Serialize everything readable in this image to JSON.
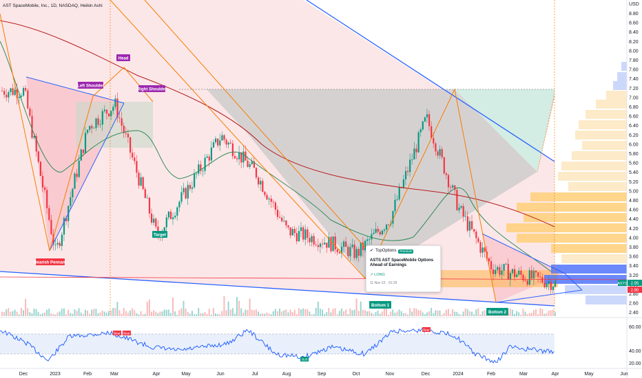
{
  "symbol_title": "AST SpaceMobile, Inc., 1D, NASDAQ, Heikin Ashi",
  "currency": "USD",
  "price_ticks": [
    "8.80",
    "8.60",
    "8.40",
    "8.20",
    "8.00",
    "7.80",
    "7.60",
    "7.40",
    "7.20",
    "7.00",
    "6.80",
    "6.60",
    "6.40",
    "6.20",
    "6.00",
    "5.80",
    "5.60",
    "5.40",
    "5.20",
    "5.00",
    "4.80",
    "4.60",
    "4.40",
    "4.20",
    "4.00",
    "3.80",
    "3.60",
    "3.40",
    "3.20",
    "3.00",
    "2.80",
    "2.60",
    "2.40"
  ],
  "months": [
    "Dec",
    "2023",
    "Feb",
    "Mar",
    "Apr",
    "May",
    "Jun",
    "Jul",
    "Aug",
    "Sep",
    "Oct",
    "Nov",
    "Dec",
    "2024",
    "Feb",
    "Mar",
    "Apr",
    "May",
    "Jun"
  ],
  "rsi_ticks": [
    "60.00",
    "40.00",
    "20.00"
  ],
  "price_tags": {
    "ticker": "ASTS",
    "last": "2.95",
    "prev": "2.90",
    "ticker_color": "#089981",
    "prev_color": "#f23645"
  },
  "annotations": {
    "head": "Head",
    "left_shoulder": "Left Shoulder",
    "right_shoulder": "Right Shoulder",
    "bearish_pennant": "Bearish Pennant",
    "target": "Target",
    "bottom1": "Bottom 1",
    "bottom2": "Bottom 2",
    "rsi_bear_1": "Bear",
    "rsi_bear_2": "Bear",
    "rsi_bear_3": "Bear",
    "rsi_bull": "Bull"
  },
  "news": {
    "source": "TopOptions",
    "badge": "Premium",
    "headline": "ASTS AST SpaceMobile Options Ahead of Earnings",
    "tag": "LONG",
    "time": "11 Nov 22 · 01:29"
  },
  "colors": {
    "up": "#089981",
    "down": "#f23645",
    "trendline": "#2962ff",
    "pattern": "#f57c00",
    "ma_red": "#b71c1c",
    "ma_green": "#2e8b57",
    "rsi": "#2962ff"
  },
  "chart_data": {
    "type": "line",
    "title": "AST SpaceMobile, Inc., 1D, NASDAQ, Heikin Ashi",
    "x": [
      "Dec",
      "2023",
      "Feb",
      "Mar",
      "Apr",
      "May",
      "Jun",
      "Jul",
      "Aug",
      "Sep",
      "Oct",
      "Nov",
      "Dec",
      "2024",
      "Feb",
      "Mar",
      "Apr"
    ],
    "series": [
      {
        "name": "ASTS",
        "values": [
          7.2,
          3.6,
          6.4,
          6.9,
          4.0,
          5.0,
          6.2,
          5.4,
          4.1,
          3.9,
          3.6,
          4.4,
          6.6,
          4.6,
          3.3,
          3.1,
          2.95
        ]
      }
    ],
    "ylim": [
      2.3,
      8.9
    ],
    "xlabel": "",
    "ylabel": "",
    "rsi": {
      "ylim": [
        10,
        70
      ],
      "levels": [
        60,
        40,
        20
      ]
    }
  }
}
